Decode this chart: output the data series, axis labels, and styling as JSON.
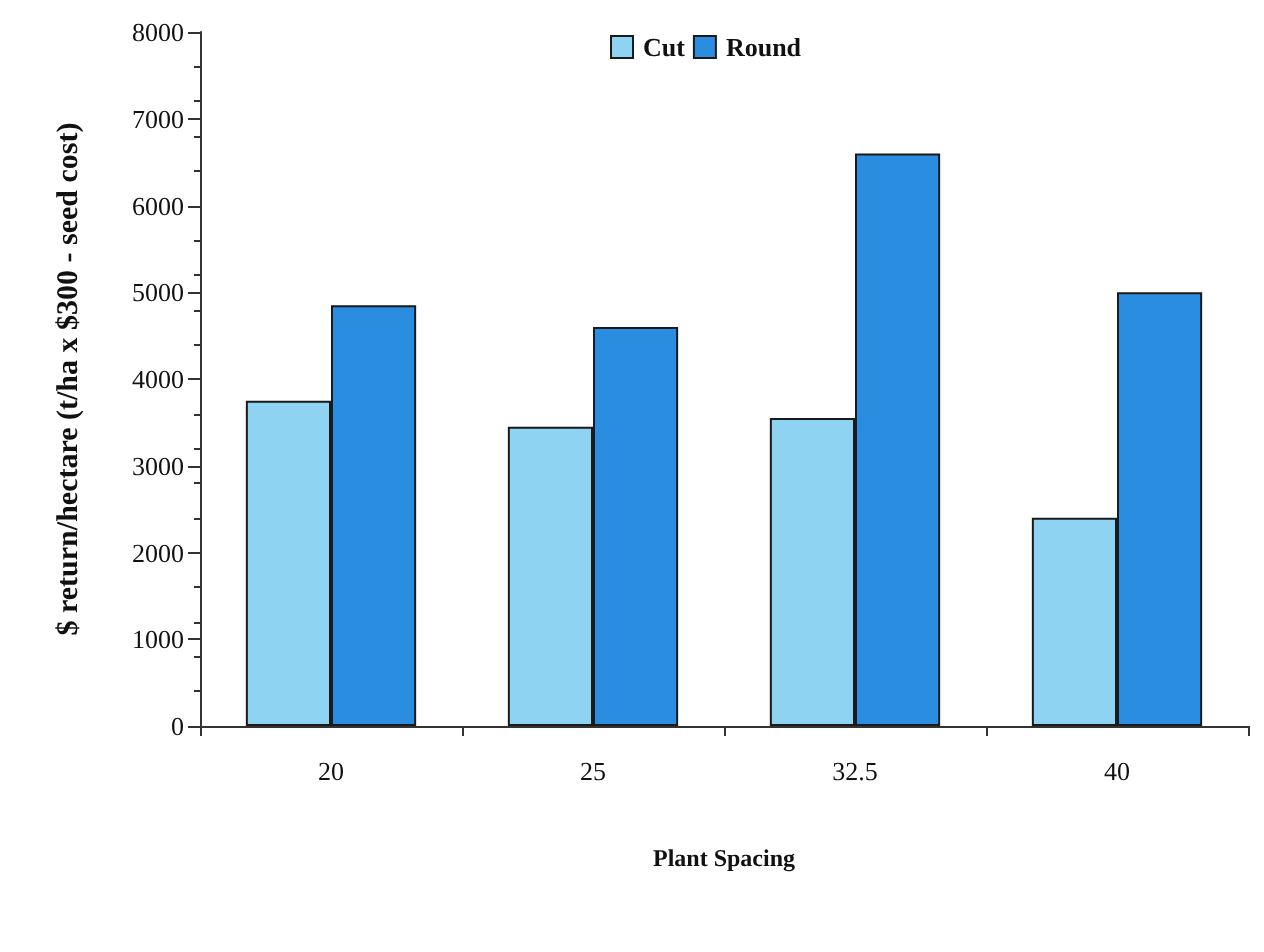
{
  "chart_data": {
    "type": "bar",
    "xlabel": "Plant Spacing",
    "ylabel": "$ return/hectare (t/ha x $300 - seed cost)",
    "categories": [
      "20",
      "25",
      "32.5",
      "40"
    ],
    "series": [
      {
        "name": "Cut",
        "color": "#8fd3f2",
        "values": [
          3750,
          3450,
          3550,
          2400
        ]
      },
      {
        "name": "Round",
        "color": "#2b8de0",
        "values": [
          4850,
          4600,
          6600,
          5000
        ]
      }
    ],
    "ylim": [
      0,
      8000
    ],
    "yticks": [
      0,
      1000,
      2000,
      3000,
      4000,
      5000,
      6000,
      7000,
      8000
    ],
    "grid": false,
    "legend": "top"
  }
}
